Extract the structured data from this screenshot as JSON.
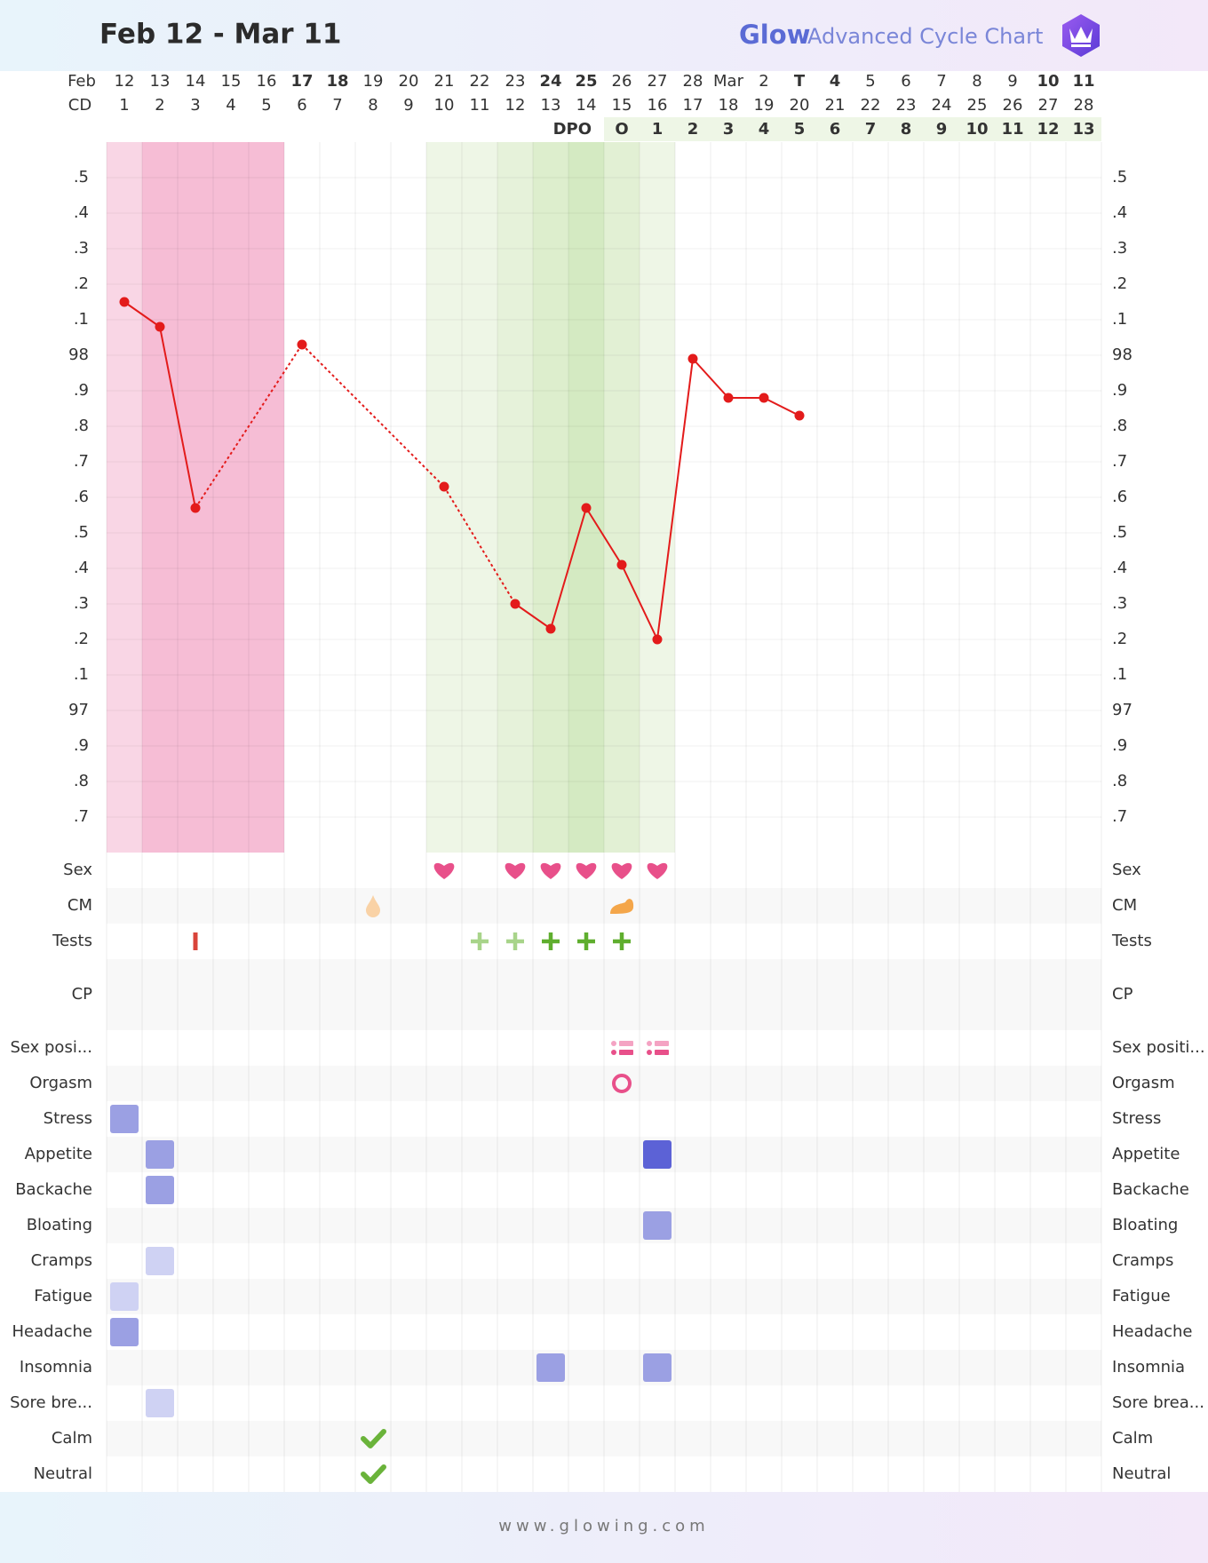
{
  "header": {
    "title": "Feb 12 - Mar 11",
    "brand": "Glow",
    "subtitle": "Advanced Cycle Chart"
  },
  "chart_data": {
    "type": "line",
    "date_row_label": "Feb",
    "categories": [
      "12",
      "13",
      "14",
      "15",
      "16",
      "17",
      "18",
      "19",
      "20",
      "21",
      "22",
      "23",
      "24",
      "25",
      "26",
      "27",
      "28",
      "Mar",
      "2",
      "T",
      "4",
      "5",
      "6",
      "7",
      "8",
      "9",
      "10",
      "11"
    ],
    "category_colors": [
      "#8a8a8a",
      "#8a8a8a",
      "#8a8a8a",
      "#8a8a8a",
      "#8a8a8a",
      "#e8483c",
      "#e8483c",
      "#8a8a8a",
      "#8a8a8a",
      "#8a8a8a",
      "#8a8a8a",
      "#8a8a8a",
      "#e8483c",
      "#e8483c",
      "#8a8a8a",
      "#8a8a8a",
      "#8a8a8a",
      "#8a8a8a",
      "#8a8a8a",
      "#3f51b5",
      "#e8483c",
      "#8a8a8a",
      "#8a8a8a",
      "#8a8a8a",
      "#8a8a8a",
      "#8a8a8a",
      "#e8483c",
      "#e8483c"
    ],
    "cd_label": "CD",
    "cd": [
      1,
      2,
      3,
      4,
      5,
      6,
      7,
      8,
      9,
      10,
      11,
      12,
      13,
      14,
      15,
      16,
      17,
      18,
      19,
      20,
      21,
      22,
      23,
      24,
      25,
      26,
      27,
      28
    ],
    "dpo_label": "DPO",
    "dpo": [
      null,
      null,
      null,
      null,
      null,
      null,
      null,
      null,
      null,
      null,
      null,
      null,
      null,
      null,
      "O",
      1,
      2,
      3,
      4,
      5,
      6,
      7,
      8,
      9,
      10,
      11,
      12,
      13
    ],
    "column_fills": [
      "#f9d6e5",
      "#f6bdd5",
      "#f6bdd5",
      "#f6bdd5",
      "#f6bdd5",
      null,
      null,
      null,
      null,
      "#eef6e6",
      "#eef6e6",
      "#e6f2da",
      "#ddeecd",
      "#d4eac2",
      "#e2f0d4",
      "#eef6e6",
      null,
      null,
      null,
      null,
      null,
      null,
      null,
      null,
      null,
      null,
      null,
      null
    ],
    "values": [
      98.15,
      98.08,
      97.57,
      null,
      null,
      98.03,
      null,
      null,
      null,
      97.63,
      null,
      97.3,
      97.23,
      97.57,
      97.41,
      97.2,
      97.99,
      97.88,
      97.88,
      97.83,
      null,
      null,
      null,
      null,
      null,
      null,
      null,
      null
    ],
    "color": "#e31b1b",
    "ylim": [
      96.6,
      98.6
    ],
    "yticks": [
      {
        "value": 98.5,
        "label": ".5"
      },
      {
        "value": 98.4,
        "label": ".4"
      },
      {
        "value": 98.3,
        "label": ".3"
      },
      {
        "value": 98.2,
        "label": ".2"
      },
      {
        "value": 98.1,
        "label": ".1"
      },
      98,
      {
        "value": 97.9,
        "label": ".9"
      },
      {
        "value": 97.8,
        "label": ".8"
      },
      {
        "value": 97.7,
        "label": ".7"
      },
      {
        "value": 97.6,
        "label": ".6"
      },
      {
        "value": 97.5,
        "label": ".5"
      },
      {
        "value": 97.4,
        "label": ".4"
      },
      {
        "value": 97.3,
        "label": ".3"
      },
      {
        "value": 97.2,
        "label": ".2"
      },
      {
        "value": 97.1,
        "label": ".1"
      },
      97,
      {
        "value": 96.9,
        "label": ".9"
      },
      {
        "value": 96.8,
        "label": ".8"
      },
      {
        "value": 96.7,
        "label": ".7"
      }
    ],
    "grid": true
  },
  "level_colors": [
    "#cfd2f3",
    "#9ba0e3",
    "#5c62d6"
  ],
  "rows": [
    {
      "label": "Sex",
      "right_label": "Sex",
      "cells": [
        null,
        null,
        null,
        null,
        null,
        null,
        null,
        null,
        null,
        "heart",
        null,
        "heart",
        "heart",
        "heart",
        "heart",
        "heart",
        null,
        null,
        null,
        null,
        null,
        null,
        null,
        null,
        null,
        null,
        null,
        null
      ]
    },
    {
      "label": "CM",
      "right_label": "CM",
      "cells": [
        null,
        null,
        null,
        null,
        null,
        null,
        null,
        "drop",
        null,
        null,
        null,
        null,
        null,
        null,
        "creamy",
        null,
        null,
        null,
        null,
        null,
        null,
        null,
        null,
        null,
        null,
        null,
        null,
        null
      ]
    },
    {
      "label": "Tests",
      "right_label": "Tests",
      "cells": [
        null,
        null,
        "test-negative",
        null,
        null,
        null,
        null,
        null,
        null,
        null,
        "test-faint",
        "test-faint",
        "test-positive",
        "test-positive",
        "test-positive",
        null,
        null,
        null,
        null,
        null,
        null,
        null,
        null,
        null,
        null,
        null,
        null,
        null
      ]
    },
    {
      "label": "CP",
      "right_label": "CP",
      "cells": [
        null,
        null,
        null,
        null,
        null,
        null,
        null,
        null,
        null,
        null,
        null,
        null,
        null,
        null,
        null,
        null,
        null,
        null,
        null,
        null,
        null,
        null,
        null,
        null,
        null,
        null,
        null,
        null
      ]
    },
    {
      "label": "Sex posi...",
      "right_label": "Sex positi...",
      "cells": [
        null,
        null,
        null,
        null,
        null,
        null,
        null,
        null,
        null,
        null,
        null,
        null,
        null,
        null,
        "position",
        "position",
        null,
        null,
        null,
        null,
        null,
        null,
        null,
        null,
        null,
        null,
        null,
        null
      ]
    },
    {
      "label": "Orgasm",
      "right_label": "Orgasm",
      "cells": [
        null,
        null,
        null,
        null,
        null,
        null,
        null,
        null,
        null,
        null,
        null,
        null,
        null,
        null,
        "orgasm",
        null,
        null,
        null,
        null,
        null,
        null,
        null,
        null,
        null,
        null,
        null,
        null,
        null
      ]
    },
    {
      "label": "Stress",
      "right_label": "Stress",
      "cells": [
        2,
        null,
        null,
        null,
        null,
        null,
        null,
        null,
        null,
        null,
        null,
        null,
        null,
        null,
        null,
        null,
        null,
        null,
        null,
        null,
        null,
        null,
        null,
        null,
        null,
        null,
        null,
        null
      ]
    },
    {
      "label": "Appetite",
      "right_label": "Appetite",
      "cells": [
        null,
        2,
        null,
        null,
        null,
        null,
        null,
        null,
        null,
        null,
        null,
        null,
        null,
        null,
        null,
        3,
        null,
        null,
        null,
        null,
        null,
        null,
        null,
        null,
        null,
        null,
        null,
        null
      ]
    },
    {
      "label": "Backache",
      "right_label": "Backache",
      "cells": [
        null,
        2,
        null,
        null,
        null,
        null,
        null,
        null,
        null,
        null,
        null,
        null,
        null,
        null,
        null,
        null,
        null,
        null,
        null,
        null,
        null,
        null,
        null,
        null,
        null,
        null,
        null,
        null
      ]
    },
    {
      "label": "Bloating",
      "right_label": "Bloating",
      "cells": [
        null,
        null,
        null,
        null,
        null,
        null,
        null,
        null,
        null,
        null,
        null,
        null,
        null,
        null,
        null,
        2,
        null,
        null,
        null,
        null,
        null,
        null,
        null,
        null,
        null,
        null,
        null,
        null
      ]
    },
    {
      "label": "Cramps",
      "right_label": "Cramps",
      "cells": [
        null,
        1,
        null,
        null,
        null,
        null,
        null,
        null,
        null,
        null,
        null,
        null,
        null,
        null,
        null,
        null,
        null,
        null,
        null,
        null,
        null,
        null,
        null,
        null,
        null,
        null,
        null,
        null
      ]
    },
    {
      "label": "Fatigue",
      "right_label": "Fatigue",
      "cells": [
        1,
        null,
        null,
        null,
        null,
        null,
        null,
        null,
        null,
        null,
        null,
        null,
        null,
        null,
        null,
        null,
        null,
        null,
        null,
        null,
        null,
        null,
        null,
        null,
        null,
        null,
        null,
        null
      ]
    },
    {
      "label": "Headache",
      "right_label": "Headache",
      "cells": [
        2,
        null,
        null,
        null,
        null,
        null,
        null,
        null,
        null,
        null,
        null,
        null,
        null,
        null,
        null,
        null,
        null,
        null,
        null,
        null,
        null,
        null,
        null,
        null,
        null,
        null,
        null,
        null
      ]
    },
    {
      "label": "Insomnia",
      "right_label": "Insomnia",
      "cells": [
        null,
        null,
        null,
        null,
        null,
        null,
        null,
        null,
        null,
        null,
        null,
        null,
        2,
        null,
        null,
        2,
        null,
        null,
        null,
        null,
        null,
        null,
        null,
        null,
        null,
        null,
        null,
        null
      ]
    },
    {
      "label": "Sore bre...",
      "right_label": "Sore brea...",
      "cells": [
        null,
        1,
        null,
        null,
        null,
        null,
        null,
        null,
        null,
        null,
        null,
        null,
        null,
        null,
        null,
        null,
        null,
        null,
        null,
        null,
        null,
        null,
        null,
        null,
        null,
        null,
        null,
        null
      ]
    },
    {
      "label": "Calm",
      "right_label": "Calm",
      "cells": [
        null,
        null,
        null,
        null,
        null,
        null,
        null,
        "check",
        null,
        null,
        null,
        null,
        null,
        null,
        null,
        null,
        null,
        null,
        null,
        null,
        null,
        null,
        null,
        null,
        null,
        null,
        null,
        null
      ]
    },
    {
      "label": "Neutral",
      "right_label": "Neutral",
      "cells": [
        null,
        null,
        null,
        null,
        null,
        null,
        null,
        "check",
        null,
        null,
        null,
        null,
        null,
        null,
        null,
        null,
        null,
        null,
        null,
        null,
        null,
        null,
        null,
        null,
        null,
        null,
        null,
        null
      ]
    }
  ],
  "footer": "www.glowing.com"
}
